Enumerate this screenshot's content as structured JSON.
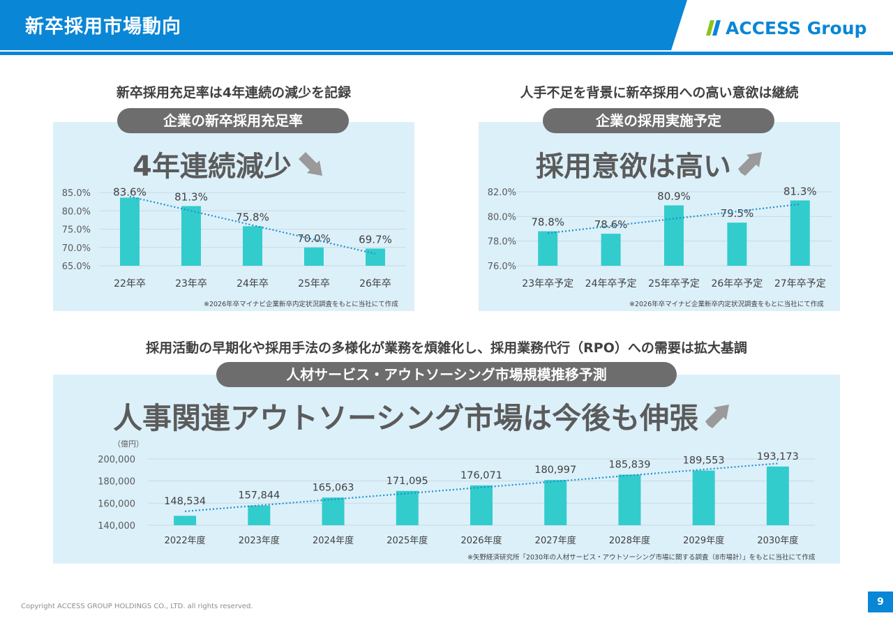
{
  "header": {
    "title": "新卒採用市場動向",
    "logo_text": "ACCESS Group"
  },
  "colors": {
    "brand_blue": "#0a86d6",
    "bar": "#33cccc",
    "trend": "#1e8fc8",
    "panel": "#dcf0fa",
    "pill": "#6d6d6d"
  },
  "left_section": {
    "lead": "新卒採用充足率は4年連続の減少を記録",
    "pill": "企業の新卒採用充足率",
    "headline": "4年連続減少",
    "headline_icon": "arrow-down-right-icon",
    "note": "※2026年卒マイナビ企業新卒内定状況調査をもとに当社にて作成"
  },
  "right_section": {
    "lead": "人手不足を背景に新卒採用への高い意欲は継続",
    "pill": "企業の採用実施予定",
    "headline": "採用意欲は高い",
    "headline_icon": "arrow-up-right-icon",
    "note": "※2026年卒マイナビ企業新卒内定状況調査をもとに当社にて作成"
  },
  "bottom_section": {
    "lead": "採用活動の早期化や採用手法の多様化が業務を煩雑化し、採用業務代行（RPO）への需要は拡大基調",
    "pill": "人材サービス・アウトソーシング市場規模推移予測",
    "headline": "人事関連アウトソーシング市場は今後も伸張",
    "headline_icon": "arrow-up-right-icon",
    "note": "※矢野経済研究所「2030年の人材サービス・アウトソーシング市場に関する調査（8市場計）」をもとに当社にて作成"
  },
  "chart_data": [
    {
      "type": "bar",
      "categories": [
        "22年卒",
        "23年卒",
        "24年卒",
        "25年卒",
        "26年卒"
      ],
      "values": [
        83.6,
        81.3,
        75.8,
        70.0,
        69.7
      ],
      "labels": [
        "83.6%",
        "81.3%",
        "75.8%",
        "70.0%",
        "69.7%"
      ],
      "yticks": [
        "65.0%",
        "70.0%",
        "75.0%",
        "80.0%",
        "85.0%"
      ],
      "ylim": [
        65,
        85
      ],
      "trendline": "linear",
      "grid": true
    },
    {
      "type": "bar",
      "categories": [
        "23年卒予定",
        "24年卒予定",
        "25年卒予定",
        "26年卒予定",
        "27年卒予定"
      ],
      "values": [
        78.8,
        78.6,
        80.9,
        79.5,
        81.3
      ],
      "labels": [
        "78.8%",
        "78.6%",
        "80.9%",
        "79.5%",
        "81.3%"
      ],
      "yticks": [
        "76.0%",
        "78.0%",
        "80.0%",
        "82.0%"
      ],
      "ylim": [
        76,
        82
      ],
      "trendline": "linear",
      "grid": true
    },
    {
      "type": "bar",
      "categories": [
        "2022年度",
        "2023年度",
        "2024年度",
        "2025年度",
        "2026年度",
        "2027年度",
        "2028年度",
        "2029年度",
        "2030年度"
      ],
      "values": [
        148534,
        157844,
        165063,
        171095,
        176071,
        180997,
        185839,
        189553,
        193173
      ],
      "labels": [
        "148,534",
        "157,844",
        "165,063",
        "171,095",
        "176,071",
        "180,997",
        "185,839",
        "189,553",
        "193,173"
      ],
      "yticks": [
        "140,000",
        "160,000",
        "180,000",
        "200,000"
      ],
      "ylim": [
        140000,
        200000
      ],
      "unit": "（億円）",
      "trendline": "linear",
      "grid": true
    }
  ],
  "footer": {
    "copyright": "Copyright ACCESS GROUP HOLDINGS CO., LTD. all rights reserved.",
    "page": "9"
  }
}
